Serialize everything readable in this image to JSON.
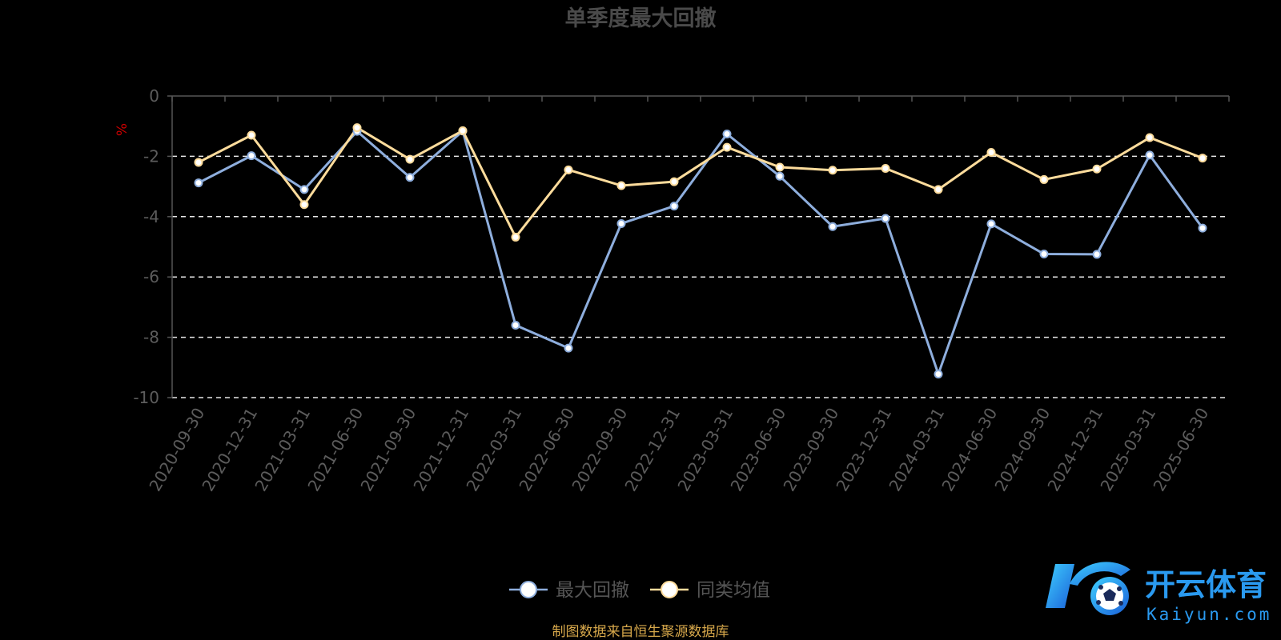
{
  "chart_data": {
    "type": "line",
    "title": "单季度最大回撤",
    "ylabel": "%",
    "ylim": [
      -10,
      0
    ],
    "yticks": [
      0,
      -2,
      -4,
      -6,
      -8,
      -10
    ],
    "grid": true,
    "legend_position": "bottom-center",
    "categories": [
      "2020-09-30",
      "2020-12-31",
      "2021-03-31",
      "2021-06-30",
      "2021-09-30",
      "2021-12-31",
      "2022-03-31",
      "2022-06-30",
      "2022-09-30",
      "2022-12-31",
      "2023-03-31",
      "2023-06-30",
      "2023-09-30",
      "2023-12-31",
      "2024-03-31",
      "2024-06-30",
      "2024-09-30",
      "2024-12-31",
      "2025-03-31",
      "2025-06-30"
    ],
    "series": [
      {
        "name": "最大回撤",
        "color": "#8eaedd",
        "values": [
          -2.88,
          -1.98,
          -3.1,
          -1.17,
          -2.7,
          -1.16,
          -7.6,
          -8.36,
          -4.23,
          -3.65,
          -1.26,
          -2.66,
          -4.33,
          -4.06,
          -9.22,
          -4.24,
          -5.24,
          -5.25,
          -1.96,
          -4.38
        ]
      },
      {
        "name": "同类均值",
        "color": "#fddc9c",
        "values": [
          -2.2,
          -1.3,
          -3.6,
          -1.05,
          -2.1,
          -1.15,
          -4.68,
          -2.45,
          -2.97,
          -2.84,
          -1.7,
          -2.36,
          -2.46,
          -2.4,
          -3.1,
          -1.87,
          -2.77,
          -2.42,
          -1.38,
          -2.06
        ]
      }
    ]
  },
  "colors": {
    "background": "#000000",
    "title": "#4a4a4a",
    "axis": "#555555",
    "tick_label": "#5c5c5c",
    "ylabel": "#cc0000",
    "grid": "#e8e8e8",
    "legend_text": "#555555",
    "source": "#d7a84b"
  },
  "source_note": "制图数据来自恒生聚源数据库",
  "watermark": {
    "cn": "开云体育",
    "en": "Kaiyun.com",
    "icon": "soccer-ball-logo-icon"
  }
}
